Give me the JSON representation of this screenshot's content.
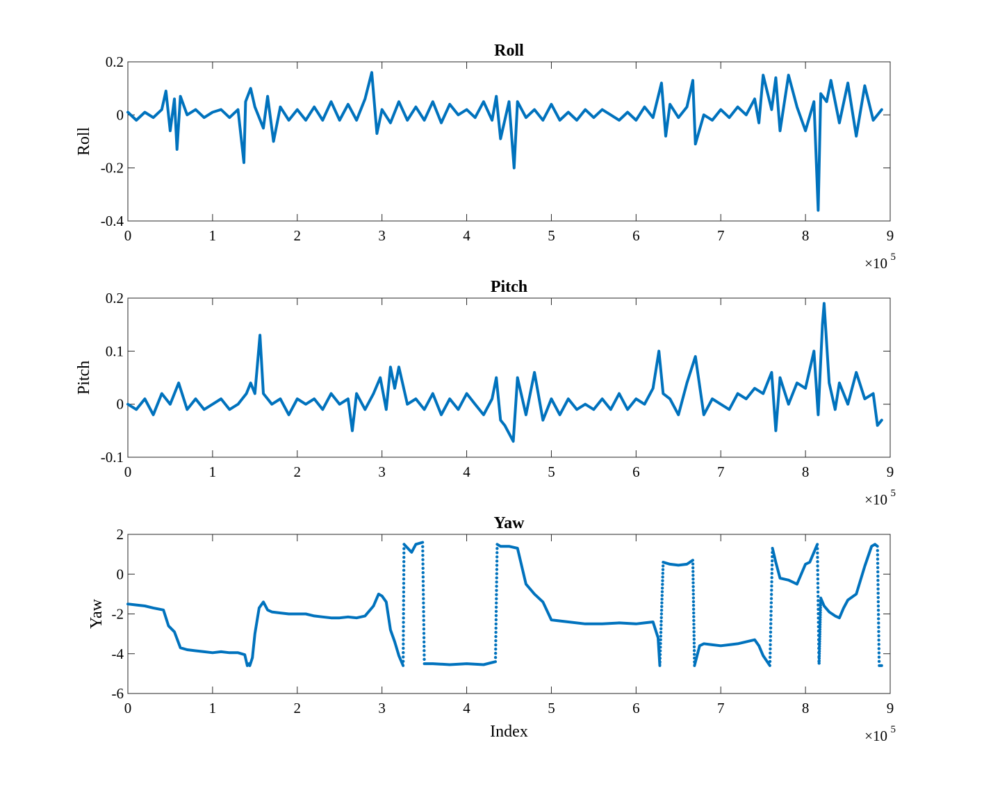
{
  "chart_data": [
    {
      "type": "line",
      "title": "Roll",
      "xlabel": "",
      "ylabel": "Roll",
      "xlim": [
        0,
        900000
      ],
      "ylim": [
        -0.4,
        0.2
      ],
      "xticks": [
        0,
        100000,
        200000,
        300000,
        400000,
        500000,
        600000,
        700000,
        800000,
        900000
      ],
      "xtick_labels": [
        "0",
        "1",
        "2",
        "3",
        "4",
        "5",
        "6",
        "7",
        "8",
        "9"
      ],
      "yticks": [
        -0.4,
        -0.2,
        0,
        0.2
      ],
      "ytick_labels": [
        "-0.4",
        "-0.2",
        "0",
        "0.2"
      ],
      "x_multiplier": "×10",
      "x_multiplier_exp": "5",
      "color": "#0072BD",
      "grid": false,
      "x": [
        0,
        10000,
        20000,
        30000,
        40000,
        45000,
        50000,
        55000,
        58000,
        62000,
        70000,
        80000,
        90000,
        100000,
        110000,
        120000,
        130000,
        137000,
        139000,
        145000,
        150000,
        160000,
        165000,
        172000,
        180000,
        190000,
        200000,
        210000,
        220000,
        230000,
        240000,
        250000,
        260000,
        270000,
        280000,
        288000,
        294000,
        300000,
        310000,
        320000,
        330000,
        340000,
        350000,
        360000,
        370000,
        380000,
        390000,
        400000,
        410000,
        420000,
        430000,
        435000,
        440000,
        450000,
        456000,
        460000,
        470000,
        480000,
        490000,
        500000,
        510000,
        520000,
        530000,
        540000,
        550000,
        560000,
        570000,
        580000,
        590000,
        600000,
        610000,
        620000,
        630000,
        635000,
        640000,
        650000,
        660000,
        667000,
        670000,
        680000,
        690000,
        700000,
        710000,
        720000,
        730000,
        740000,
        745000,
        750000,
        760000,
        765000,
        770000,
        780000,
        790000,
        800000,
        810000,
        815000,
        818000,
        825000,
        830000,
        840000,
        850000,
        860000,
        870000,
        880000,
        890000
      ],
      "y": [
        0.01,
        -0.02,
        0.01,
        -0.01,
        0.02,
        0.09,
        -0.06,
        0.06,
        -0.13,
        0.07,
        0.0,
        0.02,
        -0.01,
        0.01,
        0.02,
        -0.01,
        0.02,
        -0.18,
        0.05,
        0.1,
        0.03,
        -0.05,
        0.07,
        -0.1,
        0.03,
        -0.02,
        0.02,
        -0.02,
        0.03,
        -0.02,
        0.05,
        -0.02,
        0.04,
        -0.02,
        0.06,
        0.16,
        -0.07,
        0.02,
        -0.03,
        0.05,
        -0.02,
        0.03,
        -0.02,
        0.05,
        -0.03,
        0.04,
        0.0,
        0.02,
        -0.01,
        0.05,
        -0.02,
        0.07,
        -0.09,
        0.05,
        -0.2,
        0.05,
        -0.01,
        0.02,
        -0.02,
        0.04,
        -0.02,
        0.01,
        -0.02,
        0.02,
        -0.01,
        0.02,
        0.0,
        -0.02,
        0.01,
        -0.02,
        0.03,
        -0.01,
        0.12,
        -0.08,
        0.04,
        -0.01,
        0.03,
        0.13,
        -0.11,
        0.0,
        -0.02,
        0.02,
        -0.01,
        0.03,
        0.0,
        0.06,
        -0.03,
        0.15,
        0.02,
        0.14,
        -0.06,
        0.15,
        0.03,
        -0.06,
        0.05,
        -0.36,
        0.08,
        0.05,
        0.13,
        -0.03,
        0.12,
        -0.08,
        0.11,
        -0.02,
        0.02
      ]
    },
    {
      "type": "line",
      "title": "Pitch",
      "xlabel": "",
      "ylabel": "Pitch",
      "xlim": [
        0,
        900000
      ],
      "ylim": [
        -0.1,
        0.2
      ],
      "xticks": [
        0,
        100000,
        200000,
        300000,
        400000,
        500000,
        600000,
        700000,
        800000,
        900000
      ],
      "xtick_labels": [
        "0",
        "1",
        "2",
        "3",
        "4",
        "5",
        "6",
        "7",
        "8",
        "9"
      ],
      "yticks": [
        -0.1,
        0,
        0.1,
        0.2
      ],
      "ytick_labels": [
        "-0.1",
        "0",
        "0.1",
        "0.2"
      ],
      "x_multiplier": "×10",
      "x_multiplier_exp": "5",
      "color": "#0072BD",
      "grid": false,
      "x": [
        0,
        10000,
        20000,
        30000,
        40000,
        50000,
        60000,
        70000,
        80000,
        90000,
        100000,
        110000,
        120000,
        130000,
        140000,
        145000,
        150000,
        156000,
        160000,
        165000,
        170000,
        180000,
        190000,
        200000,
        210000,
        220000,
        230000,
        240000,
        250000,
        260000,
        265000,
        270000,
        280000,
        290000,
        298000,
        305000,
        310000,
        315000,
        320000,
        330000,
        340000,
        350000,
        360000,
        370000,
        380000,
        390000,
        400000,
        410000,
        420000,
        430000,
        435000,
        440000,
        445000,
        455000,
        460000,
        470000,
        480000,
        490000,
        500000,
        510000,
        520000,
        530000,
        540000,
        550000,
        560000,
        570000,
        580000,
        590000,
        600000,
        610000,
        620000,
        627000,
        632000,
        640000,
        650000,
        660000,
        670000,
        680000,
        690000,
        700000,
        710000,
        720000,
        730000,
        740000,
        750000,
        760000,
        765000,
        770000,
        780000,
        790000,
        800000,
        810000,
        815000,
        820000,
        822000,
        828000,
        835000,
        840000,
        850000,
        860000,
        870000,
        880000,
        885000,
        890000
      ],
      "y": [
        0.0,
        -0.01,
        0.01,
        -0.02,
        0.02,
        0.0,
        0.04,
        -0.01,
        0.01,
        -0.01,
        0.0,
        0.01,
        -0.01,
        0.0,
        0.02,
        0.04,
        0.02,
        0.13,
        0.02,
        0.01,
        0.0,
        0.01,
        -0.02,
        0.01,
        0.0,
        0.01,
        -0.01,
        0.02,
        0.0,
        0.01,
        -0.05,
        0.02,
        -0.01,
        0.02,
        0.05,
        -0.01,
        0.07,
        0.03,
        0.07,
        0.0,
        0.01,
        -0.01,
        0.02,
        -0.02,
        0.01,
        -0.01,
        0.02,
        0.0,
        -0.02,
        0.01,
        0.05,
        -0.03,
        -0.04,
        -0.07,
        0.05,
        -0.02,
        0.06,
        -0.03,
        0.01,
        -0.02,
        0.01,
        -0.01,
        0.0,
        -0.01,
        0.01,
        -0.01,
        0.02,
        -0.01,
        0.01,
        0.0,
        0.03,
        0.1,
        0.02,
        0.01,
        -0.02,
        0.04,
        0.09,
        -0.02,
        0.01,
        0.0,
        -0.01,
        0.02,
        0.01,
        0.03,
        0.02,
        0.06,
        -0.05,
        0.05,
        0.0,
        0.04,
        0.03,
        0.1,
        -0.02,
        0.15,
        0.19,
        0.04,
        -0.01,
        0.04,
        0.0,
        0.06,
        0.01,
        0.02,
        -0.04,
        -0.03
      ]
    },
    {
      "type": "line",
      "title": "Yaw",
      "xlabel": "Index",
      "ylabel": "Yaw",
      "xlim": [
        0,
        900000
      ],
      "ylim": [
        -6,
        2
      ],
      "xticks": [
        0,
        100000,
        200000,
        300000,
        400000,
        500000,
        600000,
        700000,
        800000,
        900000
      ],
      "xtick_labels": [
        "0",
        "1",
        "2",
        "3",
        "4",
        "5",
        "6",
        "7",
        "8",
        "9"
      ],
      "yticks": [
        -6,
        -4,
        -2,
        0,
        2
      ],
      "ytick_labels": [
        "-6",
        "-4",
        "-2",
        "0",
        "2"
      ],
      "x_multiplier": "×10",
      "x_multiplier_exp": "5",
      "color": "#0072BD",
      "grid": false,
      "x": [
        0,
        10000,
        20000,
        30000,
        42000,
        48000,
        55000,
        62000,
        70000,
        80000,
        90000,
        100000,
        110000,
        120000,
        130000,
        138000,
        141000,
        143000,
        144000,
        147000,
        150000,
        155000,
        160000,
        165000,
        170000,
        180000,
        190000,
        200000,
        210000,
        220000,
        230000,
        240000,
        250000,
        260000,
        270000,
        280000,
        290000,
        296000,
        300000,
        305000,
        310000,
        315000,
        320000,
        325000,
        326000,
        335000,
        340000,
        348000,
        350000,
        360000,
        380000,
        400000,
        420000,
        434000,
        436000,
        440000,
        450000,
        460000,
        470000,
        480000,
        490000,
        500000,
        520000,
        540000,
        560000,
        580000,
        600000,
        610000,
        620000,
        626000,
        628000,
        632000,
        640000,
        650000,
        660000,
        667000,
        669000,
        675000,
        680000,
        690000,
        700000,
        710000,
        720000,
        730000,
        740000,
        745000,
        750000,
        758000,
        761000,
        765000,
        770000,
        780000,
        790000,
        800000,
        805000,
        810000,
        814000,
        816000,
        818000,
        822000,
        828000,
        835000,
        840000,
        845000,
        850000,
        860000,
        870000,
        878000,
        882000,
        885000,
        887000,
        890000
      ],
      "y": [
        -1.5,
        -1.55,
        -1.6,
        -1.7,
        -1.8,
        -2.6,
        -2.9,
        -3.7,
        -3.8,
        -3.85,
        -3.9,
        -3.95,
        -3.9,
        -3.95,
        -3.95,
        -4.05,
        -4.6,
        -4.5,
        -4.6,
        -4.2,
        -3.0,
        -1.7,
        -1.4,
        -1.8,
        -1.9,
        -1.95,
        -2.0,
        -2.0,
        -2.0,
        -2.1,
        -2.15,
        -2.2,
        -2.2,
        -2.15,
        -2.2,
        -2.1,
        -1.6,
        -1.0,
        -1.1,
        -1.4,
        -2.8,
        -3.4,
        -4.1,
        -4.6,
        1.5,
        1.1,
        1.5,
        1.6,
        -4.5,
        -4.5,
        -4.55,
        -4.5,
        -4.55,
        -4.4,
        1.5,
        1.4,
        1.4,
        1.3,
        -0.5,
        -1.0,
        -1.4,
        -2.3,
        -2.4,
        -2.5,
        -2.5,
        -2.45,
        -2.5,
        -2.45,
        -2.4,
        -3.2,
        -4.6,
        0.6,
        0.5,
        0.45,
        0.5,
        0.7,
        -4.6,
        -3.6,
        -3.5,
        -3.55,
        -3.6,
        -3.55,
        -3.5,
        -3.4,
        -3.3,
        -3.6,
        -4.1,
        -4.6,
        1.3,
        0.6,
        -0.2,
        -0.3,
        -0.5,
        0.5,
        0.6,
        1.1,
        1.5,
        -4.6,
        -1.2,
        -1.6,
        -1.9,
        -2.1,
        -2.2,
        -1.7,
        -1.3,
        -1.0,
        0.4,
        1.4,
        1.5,
        1.4,
        -4.6,
        -4.6
      ]
    }
  ]
}
